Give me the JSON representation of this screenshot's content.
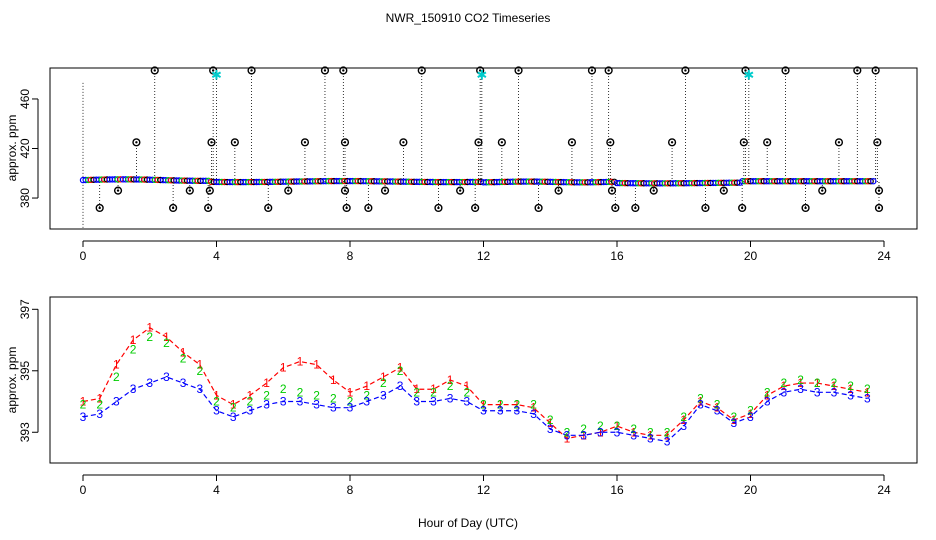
{
  "figure": {
    "title": "NWR_150910  CO2 Timeseries",
    "xlabel": "Hour of Day (UTC)"
  },
  "colors": {
    "series1": "#ff0000",
    "series2": "#00cc00",
    "series3": "#0000ff",
    "flagged": "#00cccc",
    "raw": "#000000"
  },
  "chart_data": [
    {
      "type": "scatter",
      "name": "top-panel",
      "ylabel": "approx. ppm",
      "xlim": [
        0,
        24
      ],
      "ylim": [
        355,
        485
      ],
      "xticks": [
        0,
        4,
        8,
        12,
        16,
        20,
        24
      ],
      "yticks": [
        380,
        420,
        460
      ],
      "series": [
        {
          "name": "baseline",
          "marker": "o",
          "note": "continuous band of points near 393 ppm from 0 to 23.7 h"
        },
        {
          "name": "spikes_high",
          "marker": "o",
          "x": [
            2.15,
            3.9,
            5.05,
            7.25,
            7.8,
            10.15,
            11.9,
            13.05,
            15.25,
            15.75,
            18.05,
            19.85,
            21.05,
            23.2,
            23.75
          ],
          "y": [
            483,
            483,
            483,
            483,
            483,
            483,
            483,
            483,
            483,
            483,
            483,
            483,
            483,
            483,
            483
          ]
        },
        {
          "name": "spikes_425",
          "marker": "o",
          "x": [
            1.6,
            3.85,
            4.55,
            6.65,
            7.85,
            9.6,
            11.85,
            12.55,
            14.65,
            15.8,
            17.65,
            19.8,
            20.5,
            22.65,
            23.8
          ],
          "y": [
            425,
            425,
            425,
            425,
            425,
            425,
            425,
            425,
            425,
            425,
            425,
            425,
            425,
            425,
            425
          ]
        },
        {
          "name": "lows_372",
          "marker": "o",
          "x": [
            0.5,
            2.7,
            3.75,
            5.55,
            7.9,
            8.55,
            10.65,
            11.75,
            13.65,
            15.95,
            16.55,
            18.65,
            19.75,
            21.65,
            23.85
          ],
          "y": [
            372,
            372,
            372,
            372,
            372,
            372,
            372,
            372,
            372,
            372,
            372,
            372,
            372,
            372,
            372
          ]
        },
        {
          "name": "lows_386",
          "marker": "o",
          "x": [
            1.05,
            3.2,
            3.8,
            6.15,
            7.85,
            9.05,
            11.3,
            14.25,
            15.85,
            17.1,
            19.2,
            22.15,
            23.85
          ],
          "y": [
            386,
            386,
            386,
            386,
            386,
            386,
            386,
            386,
            386,
            386,
            386,
            386,
            386
          ]
        },
        {
          "name": "flagged",
          "marker": "*",
          "x": [
            4.0,
            11.95,
            19.95
          ],
          "y": [
            479,
            479,
            479
          ]
        }
      ]
    },
    {
      "type": "scatter",
      "name": "bottom-panel",
      "ylabel": "approx. ppm",
      "xlim": [
        0,
        24
      ],
      "ylim": [
        392,
        397.4
      ],
      "xticks": [
        0,
        4,
        8,
        12,
        16,
        20,
        24
      ],
      "yticks": [
        393,
        395,
        397
      ],
      "series": [
        {
          "name": "1",
          "marker": "1",
          "x": [
            0,
            0.5,
            1,
            1.5,
            2,
            2.5,
            3,
            3.5,
            4,
            4.5,
            5,
            5.5,
            6,
            6.5,
            7,
            7.5,
            8,
            8.5,
            9,
            9.5,
            10,
            10.5,
            11,
            11.5,
            12,
            12.5,
            13,
            13.5,
            14,
            14.5,
            15,
            15.5,
            16,
            16.5,
            17,
            17.5,
            18,
            18.5,
            19,
            19.5,
            20,
            20.5,
            21,
            21.5,
            22,
            22.5,
            23,
            23.5
          ],
          "y": [
            394.0,
            394.1,
            395.2,
            396.0,
            396.4,
            396.1,
            395.6,
            395.2,
            394.2,
            393.9,
            394.2,
            394.6,
            395.1,
            395.3,
            395.2,
            394.7,
            394.3,
            394.5,
            394.8,
            395.1,
            394.4,
            394.4,
            394.7,
            394.5,
            393.9,
            393.9,
            393.9,
            393.8,
            393.3,
            392.8,
            392.9,
            393.0,
            393.2,
            393.0,
            392.9,
            392.9,
            393.4,
            394.0,
            393.8,
            393.4,
            393.6,
            394.2,
            394.5,
            394.6,
            394.6,
            394.5,
            394.4,
            394.3
          ]
        },
        {
          "name": "2",
          "marker": "2",
          "x": [
            0,
            0.5,
            1,
            1.5,
            2,
            2.5,
            3,
            3.5,
            4,
            4.5,
            5,
            5.5,
            6,
            6.5,
            7,
            7.5,
            8,
            8.5,
            9,
            9.5,
            10,
            10.5,
            11,
            11.5,
            12,
            12.5,
            13,
            13.5,
            14,
            14.5,
            15,
            15.5,
            16,
            16.5,
            17,
            17.5,
            18,
            18.5,
            19,
            19.5,
            20,
            20.5,
            21,
            21.5,
            22,
            22.5,
            23,
            23.5
          ],
          "y": [
            393.9,
            393.9,
            394.8,
            395.7,
            396.1,
            395.9,
            395.4,
            395.0,
            394.0,
            393.8,
            394.0,
            394.2,
            394.4,
            394.3,
            394.2,
            394.1,
            394.0,
            394.2,
            394.6,
            395.0,
            394.3,
            394.3,
            394.5,
            394.3,
            393.9,
            393.9,
            393.9,
            393.9,
            393.4,
            393.0,
            393.1,
            393.2,
            393.2,
            393.1,
            393.0,
            393.0,
            393.5,
            394.1,
            393.9,
            393.5,
            393.7,
            394.3,
            394.6,
            394.7,
            394.6,
            394.6,
            394.5,
            394.4
          ]
        },
        {
          "name": "3",
          "marker": "3",
          "x": [
            0,
            0.5,
            1,
            1.5,
            2,
            2.5,
            3,
            3.5,
            4,
            4.5,
            5,
            5.5,
            6,
            6.5,
            7,
            7.5,
            8,
            8.5,
            9,
            9.5,
            10,
            10.5,
            11,
            11.5,
            12,
            12.5,
            13,
            13.5,
            14,
            14.5,
            15,
            15.5,
            16,
            16.5,
            17,
            17.5,
            18,
            18.5,
            19,
            19.5,
            20,
            20.5,
            21,
            21.5,
            22,
            22.5,
            23,
            23.5
          ],
          "y": [
            393.5,
            393.6,
            394.0,
            394.4,
            394.6,
            394.8,
            394.6,
            394.4,
            393.7,
            393.5,
            393.7,
            393.9,
            394.0,
            394.0,
            393.9,
            393.8,
            393.8,
            394.0,
            394.2,
            394.5,
            394.0,
            394.0,
            394.1,
            394.0,
            393.7,
            393.7,
            393.7,
            393.6,
            393.1,
            392.9,
            392.9,
            393.0,
            393.0,
            392.9,
            392.8,
            392.7,
            393.2,
            393.9,
            393.7,
            393.3,
            393.5,
            394.0,
            394.3,
            394.4,
            394.3,
            394.3,
            394.2,
            394.1
          ]
        }
      ]
    }
  ]
}
